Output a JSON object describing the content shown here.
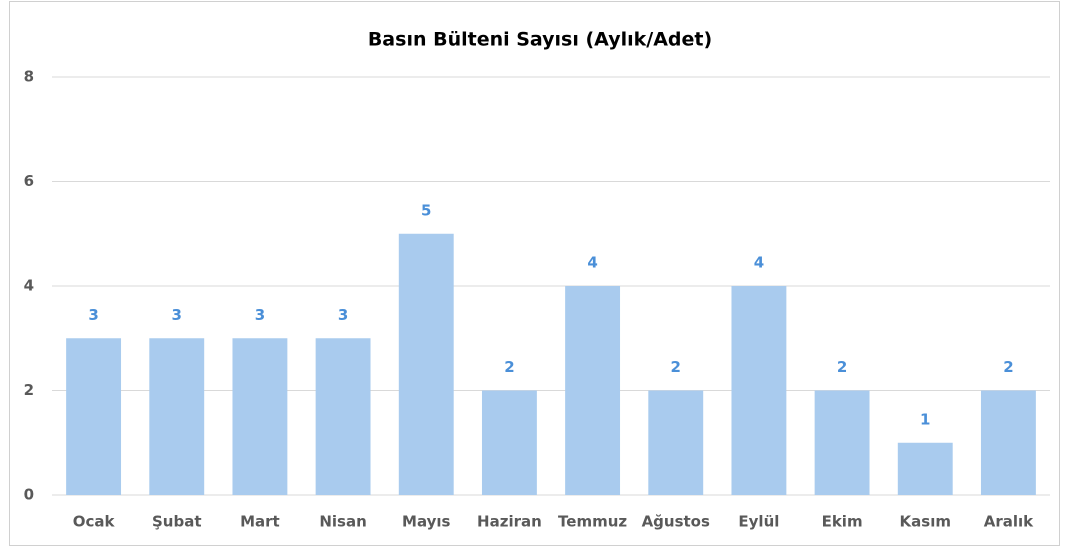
{
  "chart_data": {
    "type": "bar",
    "title": "Basın Bülteni Sayısı (Aylık/Adet)",
    "categories": [
      "Ocak",
      "Şubat",
      "Mart",
      "Nisan",
      "Mayıs",
      "Haziran",
      "Temmuz",
      "Ağustos",
      "Eylül",
      "Ekim",
      "Kasım",
      "Aralık"
    ],
    "values": [
      3,
      3,
      3,
      3,
      5,
      2,
      4,
      2,
      4,
      2,
      1,
      2
    ],
    "color": "#a9cbee",
    "label_color": "#4a8fd8",
    "ylim": [
      0,
      8
    ],
    "yticks": [
      0,
      2,
      4,
      6,
      8
    ],
    "grid": true
  }
}
